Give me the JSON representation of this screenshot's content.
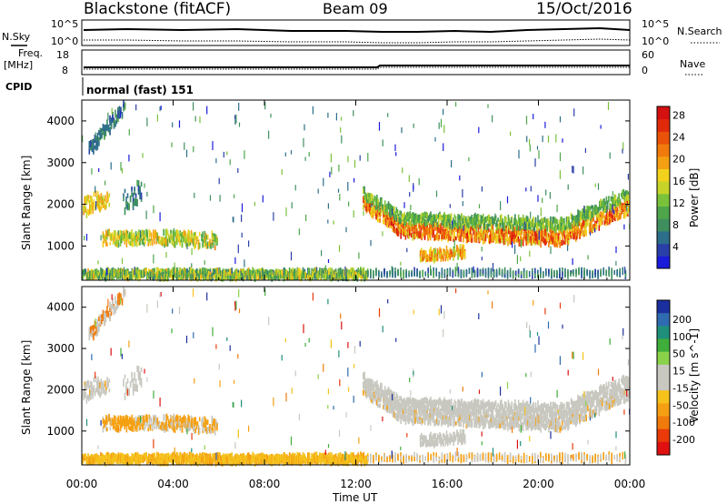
{
  "header": {
    "station": "Blackstone (fitACF)",
    "beam": "Beam 09",
    "date": "15/Oct/2016"
  },
  "nsky": {
    "label": "N.Sky",
    "ticks": [
      "10^5",
      "10^0"
    ]
  },
  "nsearch": {
    "label": "N.Search",
    "ticks": [
      "10^5",
      "10^0"
    ]
  },
  "freq": {
    "label_line1": "Freq.",
    "label_line2": "[MHz]",
    "ticks": [
      "18",
      "8"
    ]
  },
  "nave": {
    "label": "Nave",
    "ticks": [
      "60",
      "0"
    ]
  },
  "cpid": {
    "label": "CPID",
    "value": "normal (fast) 151"
  },
  "range_axis": {
    "label": "Slant Range [km]",
    "ticks": [
      "1000",
      "2000",
      "3000",
      "4000"
    ]
  },
  "power_scale": {
    "label": "Power [dB]",
    "ticks": [
      "4",
      "8",
      "12",
      "16",
      "20",
      "24",
      "28"
    ],
    "colors": [
      "#1a1adb",
      "#2a3fa8",
      "#2d6e8a",
      "#3f8f5e",
      "#4ea54a",
      "#7ac23a",
      "#c6d42a",
      "#f2d21c",
      "#f5a012",
      "#f07b0c",
      "#ea520a",
      "#e02a0a",
      "#d41010"
    ]
  },
  "velocity_scale": {
    "label": "Velocity [m s^-1]",
    "ticks": [
      "200",
      "100",
      "50",
      "15",
      "-15",
      "-50",
      "-100",
      "-200"
    ],
    "colors": [
      "#1c2f9e",
      "#2f6bb0",
      "#1f8f7a",
      "#3fae3a",
      "#8ad24a",
      "#c8c8c0",
      "#c8c8c0",
      "#f5c21c",
      "#f5a012",
      "#f07b0c",
      "#ea3a0a",
      "#e01010"
    ]
  },
  "time_axis": {
    "label": "Time UT",
    "ticks": [
      "00:00",
      "04:00",
      "08:00",
      "12:00",
      "16:00",
      "20:00",
      "00:00"
    ]
  }
}
